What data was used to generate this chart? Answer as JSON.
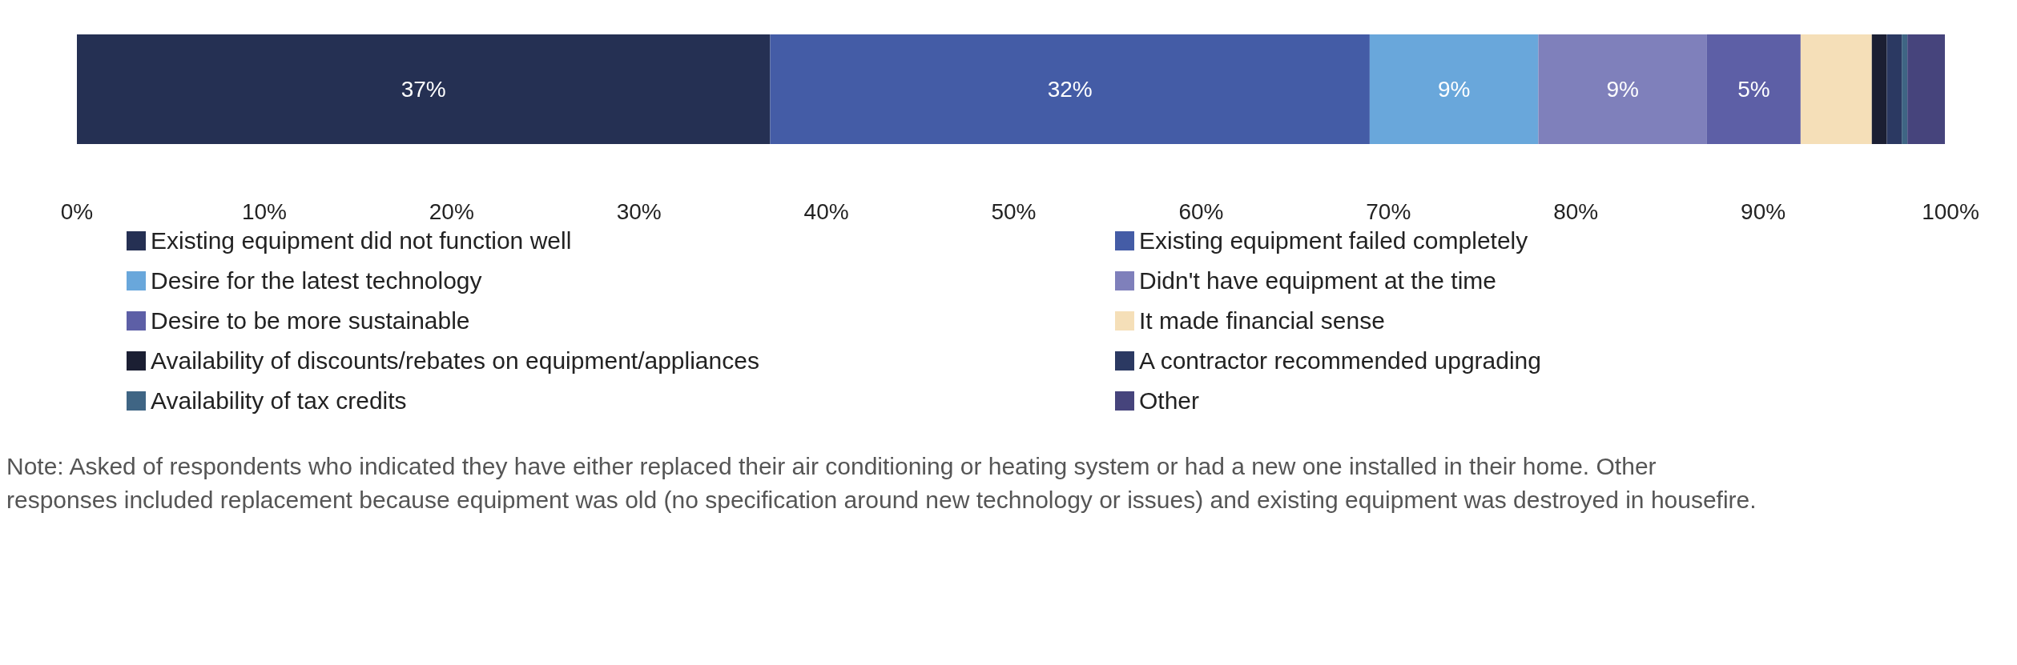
{
  "chart_data": {
    "type": "bar",
    "orientation": "horizontal",
    "stacked": true,
    "categories": [
      null
    ],
    "series": [
      {
        "name": "Existing equipment did not function well",
        "color": "#253053",
        "values": [
          37
        ],
        "value_labels": [
          "37%"
        ]
      },
      {
        "name": "Existing equipment failed completely",
        "color": "#445ca6",
        "values": [
          32
        ],
        "value_labels": [
          "32%"
        ]
      },
      {
        "name": "Desire for the latest technology",
        "color": "#69a7db",
        "values": [
          9
        ],
        "value_labels": [
          "9%"
        ]
      },
      {
        "name": "Didn't have equipment at the time",
        "color": "#7f80bb",
        "values": [
          9
        ],
        "value_labels": [
          "9%"
        ]
      },
      {
        "name": "Desire to be more sustainable",
        "color": "#5d5fa6",
        "values": [
          5
        ],
        "value_labels": [
          "5%"
        ]
      },
      {
        "name": "It made financial sense",
        "color": "#f5dfb8",
        "values": [
          3.8
        ]
      },
      {
        "name": "Availability of discounts/rebates on equipment/appliances",
        "color": "#1b1f33",
        "values": [
          0.8
        ]
      },
      {
        "name": "A contractor recommended upgrading",
        "color": "#2b3962",
        "values": [
          0.8
        ]
      },
      {
        "name": "Availability of tax credits",
        "color": "#3f6584",
        "values": [
          0.3
        ]
      },
      {
        "name": "Other",
        "color": "#46447c",
        "values": [
          2
        ]
      }
    ],
    "xlim": [
      0,
      100
    ],
    "xticks": [
      {
        "value": 0,
        "label": "0%"
      },
      {
        "value": 10,
        "label": "10%"
      },
      {
        "value": 20,
        "label": "20%"
      },
      {
        "value": 30,
        "label": "30%"
      },
      {
        "value": 40,
        "label": "40%"
      },
      {
        "value": 50,
        "label": "50%"
      },
      {
        "value": 60,
        "label": "60%"
      },
      {
        "value": 70,
        "label": "70%"
      },
      {
        "value": 80,
        "label": "80%"
      },
      {
        "value": 90,
        "label": "90%"
      },
      {
        "value": 100,
        "label": "100%"
      }
    ],
    "grid": false,
    "legend": "bottom",
    "annotations": [
      "Note: Asked of respondents who indicated they have either replaced their air conditioning or heating system or had a new one installed in their home. Other responses included replacement because equipment was old (no specification around new technology or issues) and existing equipment was destroyed in housefire."
    ]
  }
}
